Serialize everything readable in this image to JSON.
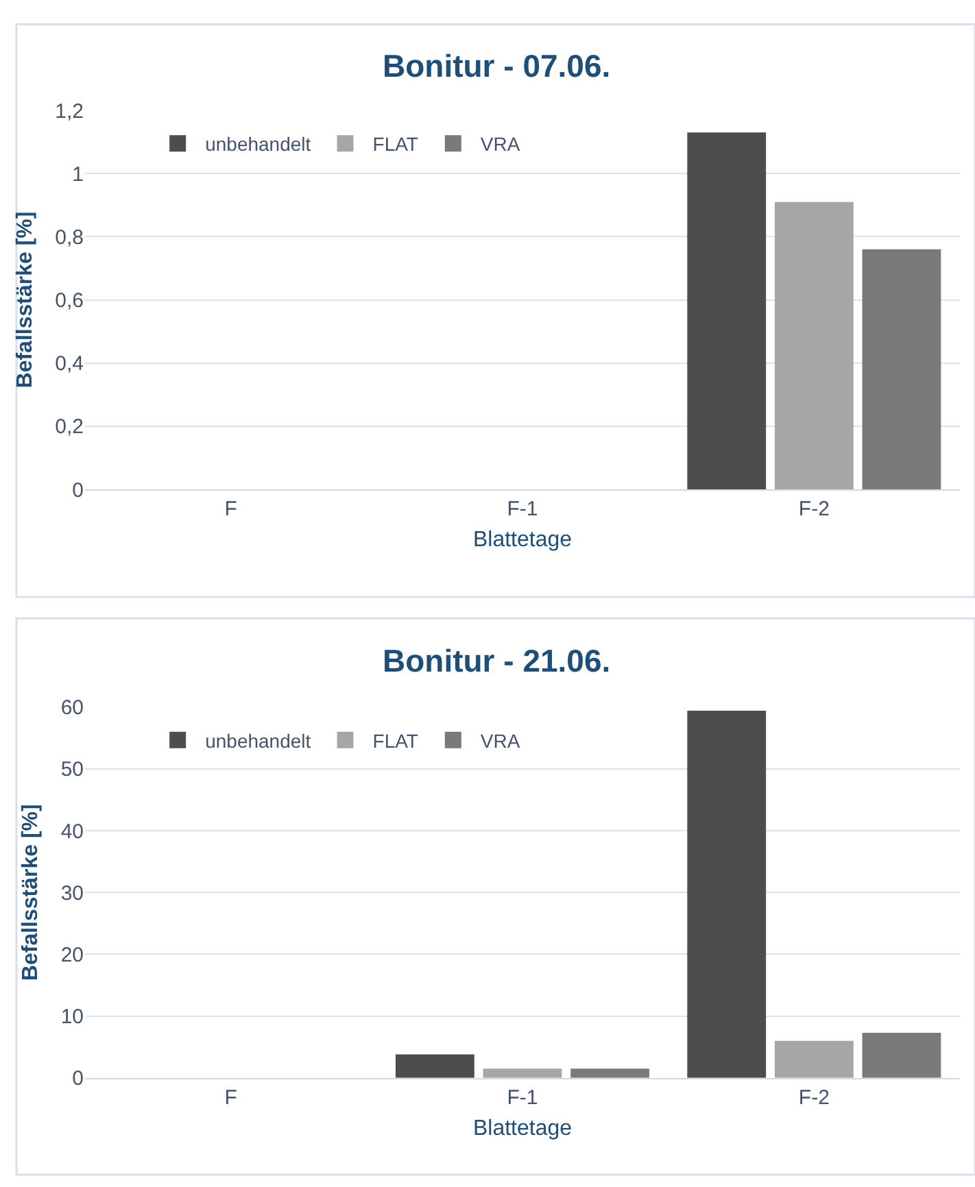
{
  "chart_data": [
    {
      "type": "bar",
      "title": "Bonitur - 07.06.",
      "xlabel": "Blattetage",
      "ylabel": "Befallsstärke [%]",
      "categories": [
        "F",
        "F-1",
        "F-2"
      ],
      "series": [
        {
          "name": "unbehandelt",
          "color": "#4d4d4d",
          "values": [
            0,
            0,
            1.13
          ]
        },
        {
          "name": "FLAT",
          "color": "#a6a6a6",
          "values": [
            0,
            0,
            0.91
          ]
        },
        {
          "name": "VRA",
          "color": "#7a7a7a",
          "values": [
            0,
            0,
            0.76
          ]
        }
      ],
      "ylim": [
        0,
        1.2
      ],
      "yticks": [
        {
          "value": 0,
          "label": "0"
        },
        {
          "value": 0.2,
          "label": "0,2"
        },
        {
          "value": 0.4,
          "label": "0,4"
        },
        {
          "value": 0.6,
          "label": "0,6"
        },
        {
          "value": 0.8,
          "label": "0,8"
        },
        {
          "value": 1,
          "label": "1"
        },
        {
          "value": 1.2,
          "label": "1,2"
        }
      ],
      "grid": "y",
      "legend": "top left"
    },
    {
      "type": "bar",
      "title": "Bonitur - 21.06.",
      "xlabel": "Blattetage",
      "ylabel": "Befallsstärke [%]",
      "categories": [
        "F",
        "F-1",
        "F-2"
      ],
      "series": [
        {
          "name": "unbehandelt",
          "color": "#4d4d4d",
          "values": [
            0,
            3.8,
            59.4
          ]
        },
        {
          "name": "FLAT",
          "color": "#a6a6a6",
          "values": [
            0,
            1.5,
            6.0
          ]
        },
        {
          "name": "VRA",
          "color": "#7a7a7a",
          "values": [
            0,
            1.5,
            7.3
          ]
        }
      ],
      "ylim": [
        0,
        60
      ],
      "yticks": [
        0,
        10,
        20,
        30,
        40,
        50,
        60
      ],
      "grid": "y",
      "legend": "top left"
    }
  ]
}
